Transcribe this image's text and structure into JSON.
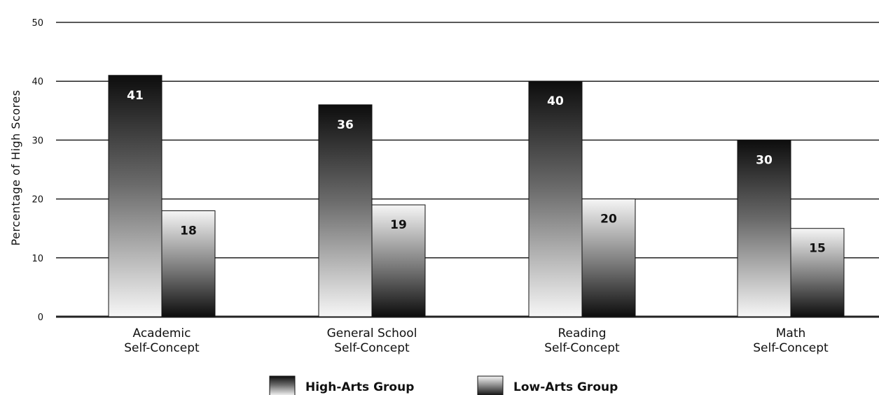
{
  "chart_data": {
    "type": "bar",
    "title": "",
    "xlabel": "",
    "ylabel": "Percentage of High Scores",
    "ylim": [
      0,
      50
    ],
    "yticks": [
      0,
      10,
      20,
      30,
      40,
      50
    ],
    "grid": true,
    "legend_position": "bottom",
    "categories": [
      [
        "Academic",
        "Self-Concept"
      ],
      [
        "General School",
        "Self-Concept"
      ],
      [
        "Reading",
        "Self-Concept"
      ],
      [
        "Math",
        "Self-Concept"
      ]
    ],
    "series": [
      {
        "name": "High-Arts Group",
        "values": [
          41,
          36,
          40,
          30
        ],
        "gradient": "dark-top"
      },
      {
        "name": "Low-Arts Group",
        "values": [
          18,
          19,
          20,
          15
        ],
        "gradient": "light-top"
      }
    ]
  },
  "colors": {
    "dark": "#111111",
    "light": "#f4f4f4",
    "grid": "#222222"
  }
}
